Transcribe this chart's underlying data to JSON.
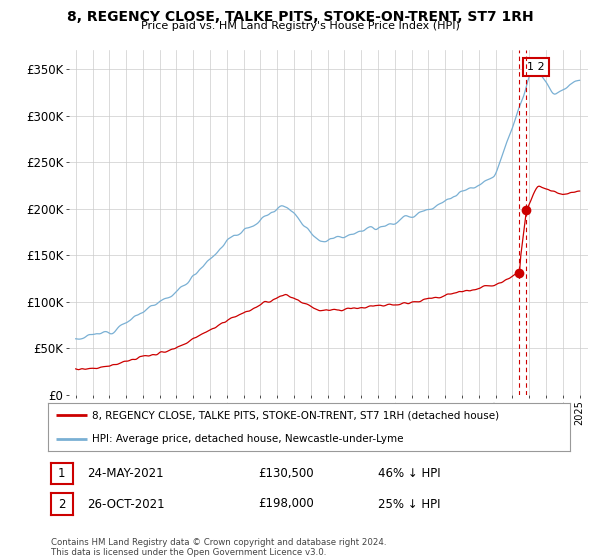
{
  "title": "8, REGENCY CLOSE, TALKE PITS, STOKE-ON-TRENT, ST7 1RH",
  "subtitle": "Price paid vs. HM Land Registry's House Price Index (HPI)",
  "ylabel_ticks": [
    "£0",
    "£50K",
    "£100K",
    "£150K",
    "£200K",
    "£250K",
    "£300K",
    "£350K"
  ],
  "ytick_values": [
    0,
    50000,
    100000,
    150000,
    200000,
    250000,
    300000,
    350000
  ],
  "ylim": [
    0,
    370000
  ],
  "hpi_color": "#7ab0d4",
  "price_color": "#cc0000",
  "annotation_color": "#cc0000",
  "legend_label_red": "8, REGENCY CLOSE, TALKE PITS, STOKE-ON-TRENT, ST7 1RH (detached house)",
  "legend_label_blue": "HPI: Average price, detached house, Newcastle-under-Lyme",
  "transaction1_date": "24-MAY-2021",
  "transaction1_price": "£130,500",
  "transaction1_hpi": "46% ↓ HPI",
  "transaction2_date": "26-OCT-2021",
  "transaction2_price": "£198,000",
  "transaction2_hpi": "25% ↓ HPI",
  "footer": "Contains HM Land Registry data © Crown copyright and database right 2024.\nThis data is licensed under the Open Government Licence v3.0.",
  "background_color": "#ffffff",
  "grid_color": "#cccccc",
  "t1": 2021.38,
  "t2": 2021.82,
  "t1_price": 130500,
  "t2_price": 198000
}
